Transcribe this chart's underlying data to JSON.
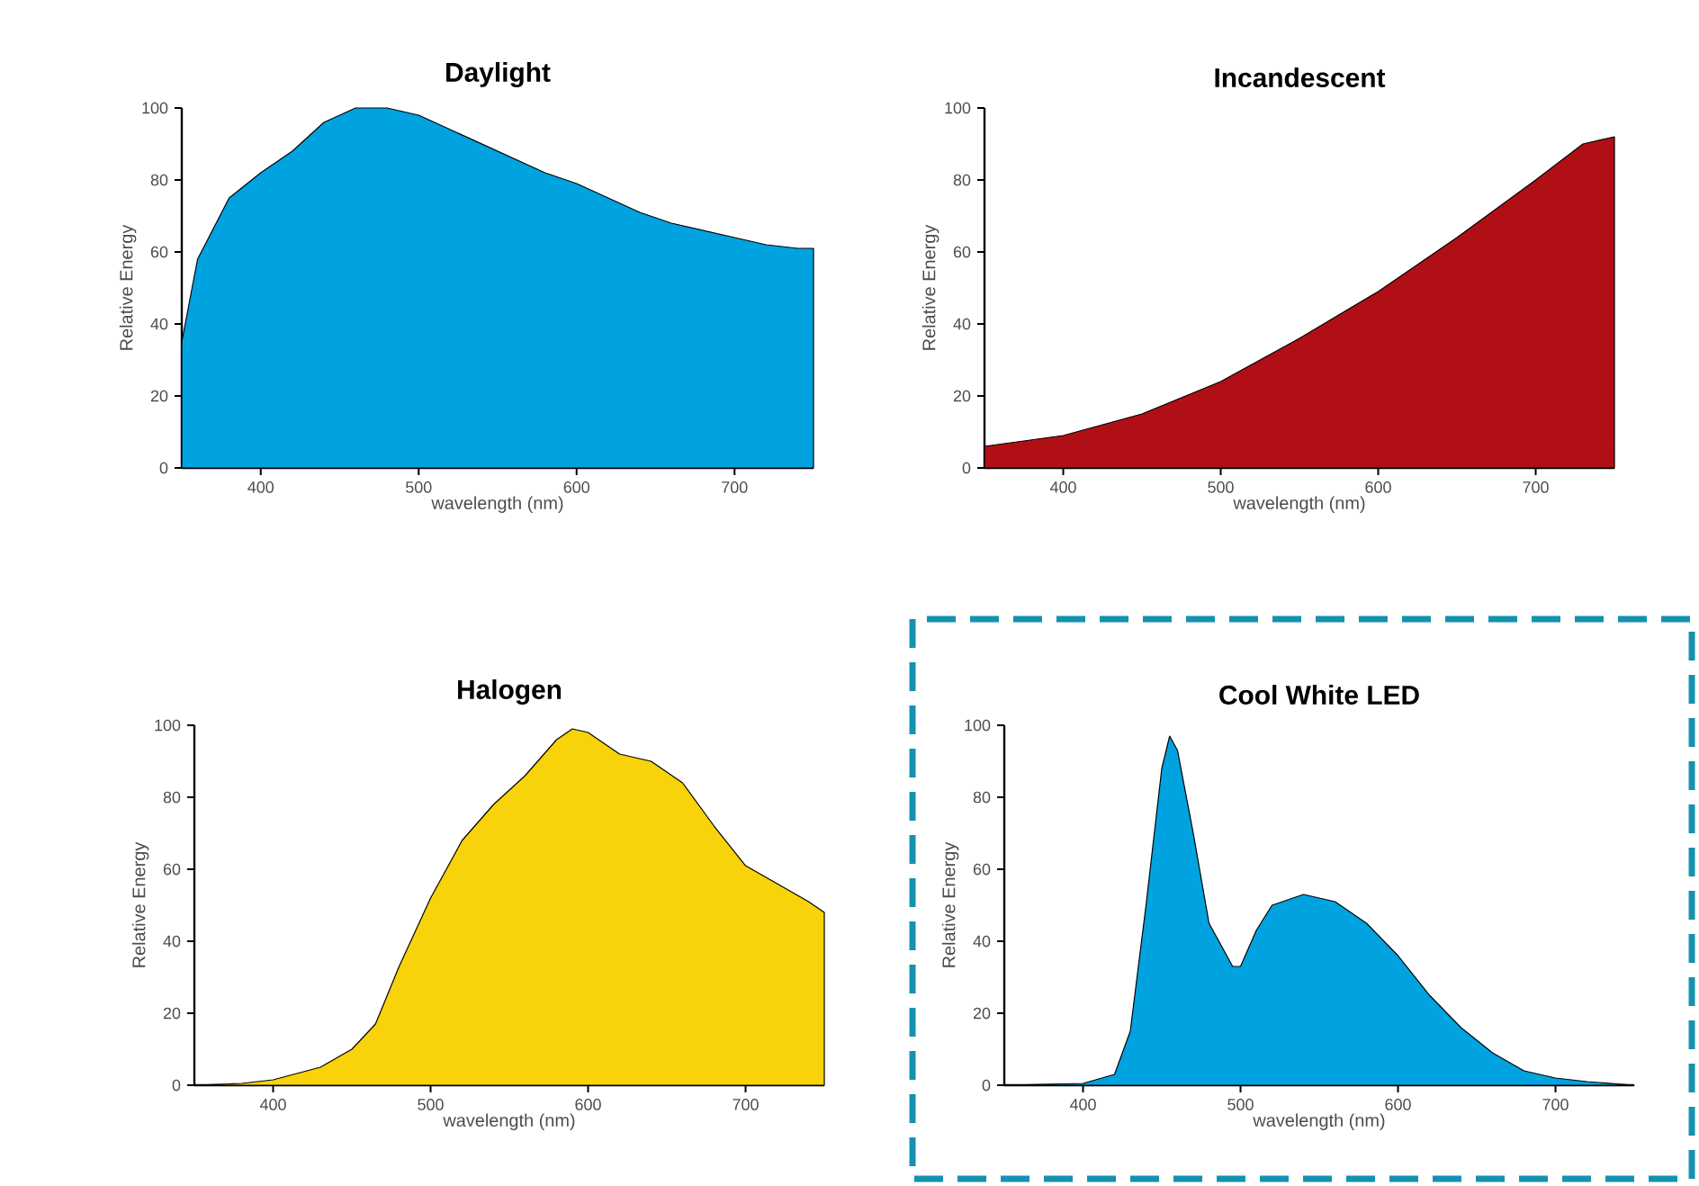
{
  "chart_data": [
    {
      "type": "area",
      "title": "Daylight",
      "xlabel": "wavelength (nm)",
      "ylabel": "Relative Energy",
      "x": [
        350,
        360,
        380,
        400,
        420,
        440,
        460,
        480,
        500,
        520,
        540,
        560,
        580,
        600,
        620,
        640,
        660,
        680,
        700,
        720,
        740,
        750
      ],
      "values": [
        35,
        58,
        75,
        82,
        88,
        96,
        100,
        100,
        98,
        94,
        90,
        86,
        82,
        79,
        75,
        71,
        68,
        66,
        64,
        62,
        61,
        61
      ],
      "color": "#00a3e0",
      "xlim": [
        350,
        750
      ],
      "ylim": [
        0,
        100
      ],
      "xticks": [
        400,
        500,
        600,
        700
      ],
      "yticks": [
        0,
        20,
        40,
        60,
        80,
        100
      ]
    },
    {
      "type": "area",
      "title": "Incandescent",
      "xlabel": "wavelength (nm)",
      "ylabel": "Relative Energy",
      "x": [
        350,
        400,
        450,
        500,
        550,
        600,
        650,
        700,
        730,
        750
      ],
      "values": [
        6,
        9,
        15,
        24,
        36,
        49,
        64,
        80,
        90,
        92
      ],
      "color": "#b01015",
      "xlim": [
        350,
        750
      ],
      "ylim": [
        0,
        100
      ],
      "xticks": [
        400,
        500,
        600,
        700
      ],
      "yticks": [
        0,
        20,
        40,
        60,
        80,
        100
      ]
    },
    {
      "type": "area",
      "title": "Halogen",
      "xlabel": "wavelength (nm)",
      "ylabel": "Relative Energy",
      "x": [
        350,
        380,
        400,
        430,
        450,
        465,
        480,
        500,
        520,
        540,
        560,
        580,
        590,
        600,
        620,
        640,
        660,
        680,
        700,
        720,
        740,
        750
      ],
      "values": [
        0,
        0.5,
        1.5,
        5,
        10,
        17,
        33,
        52,
        68,
        78,
        86,
        96,
        99,
        98,
        92,
        90,
        84,
        72,
        61,
        56,
        51,
        48
      ],
      "color": "#f8d20a",
      "xlim": [
        350,
        750
      ],
      "ylim": [
        0,
        100
      ],
      "xticks": [
        400,
        500,
        600,
        700
      ],
      "yticks": [
        0,
        20,
        40,
        60,
        80,
        100
      ]
    },
    {
      "type": "area",
      "title": "Cool White LED",
      "xlabel": "wavelength (nm)",
      "ylabel": "Relative Energy",
      "x": [
        350,
        400,
        420,
        430,
        440,
        450,
        455,
        460,
        470,
        480,
        495,
        500,
        510,
        520,
        540,
        560,
        580,
        600,
        620,
        640,
        660,
        680,
        700,
        720,
        750
      ],
      "values": [
        0,
        0.5,
        3,
        15,
        50,
        88,
        97,
        93,
        70,
        45,
        33,
        33,
        43,
        50,
        53,
        51,
        45,
        36,
        25,
        16,
        9,
        4,
        2,
        1,
        0
      ],
      "color": "#00a3e0",
      "xlim": [
        350,
        750
      ],
      "ylim": [
        0,
        100
      ],
      "xticks": [
        400,
        500,
        600,
        700
      ],
      "yticks": [
        0,
        20,
        40,
        60,
        80,
        100
      ]
    }
  ]
}
